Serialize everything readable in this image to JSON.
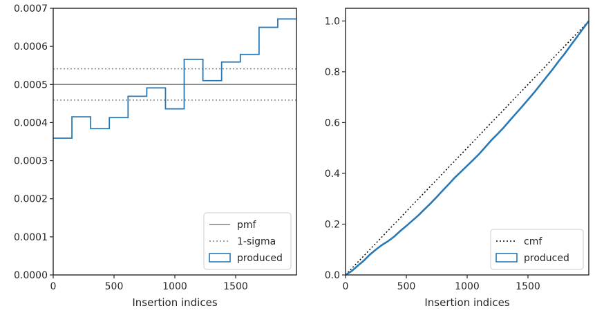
{
  "colors": {
    "produced": "#2878b5",
    "pmf": "#808080",
    "sigma": "#808080",
    "cmf": "#000000",
    "axes": "#262626"
  },
  "chart_data": [
    {
      "type": "line",
      "xlabel": "Insertion indices",
      "ylabel": "",
      "xlim": [
        0,
        2000
      ],
      "ylim": [
        0,
        0.0007
      ],
      "x_ticks": [
        "0",
        "500",
        "1000",
        "1500"
      ],
      "x_tick_values": [
        0,
        500,
        1000,
        1500
      ],
      "y_ticks": [
        "0.0000",
        "0.0001",
        "0.0002",
        "0.0003",
        "0.0004",
        "0.0005",
        "0.0006",
        "0.0007"
      ],
      "y_tick_values": [
        0,
        0.0001,
        0.0002,
        0.0003,
        0.0004,
        0.0005,
        0.0006,
        0.0007
      ],
      "grid": false,
      "legend_position": "lower-right",
      "hlines": [
        {
          "name": "pmf",
          "y": 0.0005,
          "style": "solid"
        },
        {
          "name": "1-sigma",
          "y": 0.000541,
          "style": "dotted"
        },
        {
          "name": "1-sigma",
          "y": 0.000459,
          "style": "dotted",
          "legend": false
        }
      ],
      "series": [
        {
          "name": "produced",
          "kind": "step-histogram",
          "bin_edges": [
            0,
            153.8,
            307.7,
            461.5,
            615.4,
            769.2,
            923.1,
            1076.9,
            1230.8,
            1384.6,
            1538.5,
            1692.3,
            1846.2,
            2000
          ],
          "values": [
            0.000359,
            0.000415,
            0.000384,
            0.000413,
            0.000469,
            0.000491,
            0.000436,
            0.000566,
            0.00051,
            0.000559,
            0.000579,
            0.00065,
            0.000672
          ]
        }
      ],
      "legend": [
        "pmf",
        "1-sigma",
        "produced"
      ]
    },
    {
      "type": "line",
      "xlabel": "Insertion indices",
      "ylabel": "",
      "xlim": [
        0,
        2000
      ],
      "ylim": [
        0,
        1.05
      ],
      "x_ticks": [
        "0",
        "500",
        "1000",
        "1500"
      ],
      "x_tick_values": [
        0,
        500,
        1000,
        1500
      ],
      "y_ticks": [
        "0.0",
        "0.2",
        "0.4",
        "0.6",
        "0.8",
        "1.0"
      ],
      "y_tick_values": [
        0,
        0.2,
        0.4,
        0.6,
        0.8,
        1.0
      ],
      "grid": false,
      "legend_position": "lower-right",
      "series": [
        {
          "name": "cmf",
          "style": "dotted",
          "x": [
            0,
            2000
          ],
          "y": [
            0,
            1.0
          ]
        },
        {
          "name": "produced",
          "style": "solid",
          "x": [
            0,
            50,
            100,
            150,
            200,
            250,
            300,
            350,
            400,
            450,
            500,
            550,
            600,
            650,
            700,
            750,
            800,
            850,
            900,
            950,
            1000,
            1050,
            1100,
            1150,
            1200,
            1250,
            1300,
            1350,
            1400,
            1450,
            1500,
            1550,
            1600,
            1650,
            1700,
            1750,
            1800,
            1850,
            1900,
            1950,
            2000
          ],
          "y": [
            0,
            0.015,
            0.036,
            0.056,
            0.08,
            0.1,
            0.118,
            0.133,
            0.151,
            0.173,
            0.193,
            0.214,
            0.235,
            0.259,
            0.282,
            0.307,
            0.333,
            0.358,
            0.384,
            0.407,
            0.43,
            0.453,
            0.477,
            0.504,
            0.531,
            0.555,
            0.58,
            0.608,
            0.635,
            0.662,
            0.69,
            0.718,
            0.748,
            0.778,
            0.808,
            0.84,
            0.87,
            0.903,
            0.935,
            0.968,
            1.0
          ]
        }
      ],
      "legend": [
        "cmf",
        "produced"
      ]
    }
  ]
}
